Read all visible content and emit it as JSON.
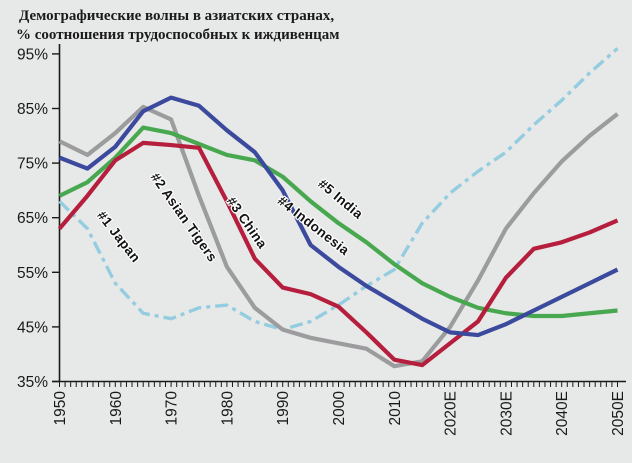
{
  "title": {
    "line1": "Демографические волны в азиатских странах,",
    "line2": "% соотношения трудоспособных к иждивенцам"
  },
  "colors": {
    "background": "#e7e8e8",
    "axis": "#1a1a1a",
    "tick_text": "#1a1a1a"
  },
  "chart_data": {
    "type": "line",
    "title": "Демографические волны в азиатских странах, % соотношения трудоспособных к иждивенцам",
    "grid": false,
    "legend_position": "inline-rotated-labels",
    "ylim": [
      35,
      97
    ],
    "xlabel": "",
    "ylabel": "% соотношения трудоспособных к иждивенцам",
    "x_years": [
      1950,
      1955,
      1960,
      1965,
      1970,
      1975,
      1980,
      1985,
      1990,
      1995,
      2000,
      2005,
      2010,
      2015,
      2020,
      2025,
      2030,
      2035,
      2040,
      2045,
      2050
    ],
    "x_tick_labels": [
      "1950",
      "1960",
      "1970",
      "1980",
      "1990",
      "2000",
      "2010",
      "2020E",
      "2030E",
      "2040E",
      "2050E"
    ],
    "y_tick_labels": [
      "35%",
      "45%",
      "55%",
      "65%",
      "75%",
      "85%",
      "95%"
    ],
    "y_tick_values": [
      35,
      45,
      55,
      65,
      75,
      85,
      95
    ],
    "series": [
      {
        "name": "#1 Japan",
        "slug": "japan",
        "color": "#94cde0",
        "dash": "13 5 4 5",
        "width": 3.4,
        "values": [
          68,
          63,
          53,
          47.5,
          46.5,
          48.5,
          49,
          46,
          44.5,
          46,
          49,
          52.5,
          55.5,
          64,
          69.5,
          73.5,
          77,
          82,
          86.5,
          91.5,
          96
        ]
      },
      {
        "name": "#2 Asian Tigers",
        "slug": "asian-tigers",
        "color": "#9c9c9e",
        "dash": null,
        "width": 4.2,
        "values": [
          79,
          76.5,
          80.5,
          85.3,
          83,
          69,
          56,
          48.5,
          44.5,
          43,
          42,
          41,
          37.8,
          38.7,
          45,
          53.5,
          63,
          69.5,
          75.3,
          80,
          84
        ]
      },
      {
        "name": "#5 India",
        "slug": "india",
        "color": "#48a84f",
        "dash": null,
        "width": 4.2,
        "values": [
          69,
          71.5,
          76,
          81.5,
          80.5,
          78.5,
          76.5,
          75.5,
          72.5,
          68,
          64,
          60.5,
          56.5,
          53,
          50.5,
          48.5,
          47.5,
          47,
          47,
          47.5,
          48
        ]
      },
      {
        "name": "#3 China",
        "slug": "china",
        "color": "#b51e3c",
        "dash": null,
        "width": 4.2,
        "values": [
          63,
          69,
          75.5,
          78.7,
          78.3,
          77.8,
          68,
          57.5,
          52.2,
          51,
          48.7,
          44,
          39,
          38,
          42,
          46,
          54,
          59.3,
          60.5,
          62.3,
          64.5
        ]
      },
      {
        "name": "#4 Indonesia",
        "slug": "indonesia",
        "color": "#3c4a9e",
        "dash": null,
        "width": 4.2,
        "values": [
          76,
          74,
          78,
          84.5,
          87,
          85.5,
          81,
          77,
          70,
          60,
          56,
          52.5,
          49.5,
          46.5,
          44,
          43.5,
          45.5,
          48,
          50.5,
          53,
          55.5
        ]
      }
    ]
  }
}
